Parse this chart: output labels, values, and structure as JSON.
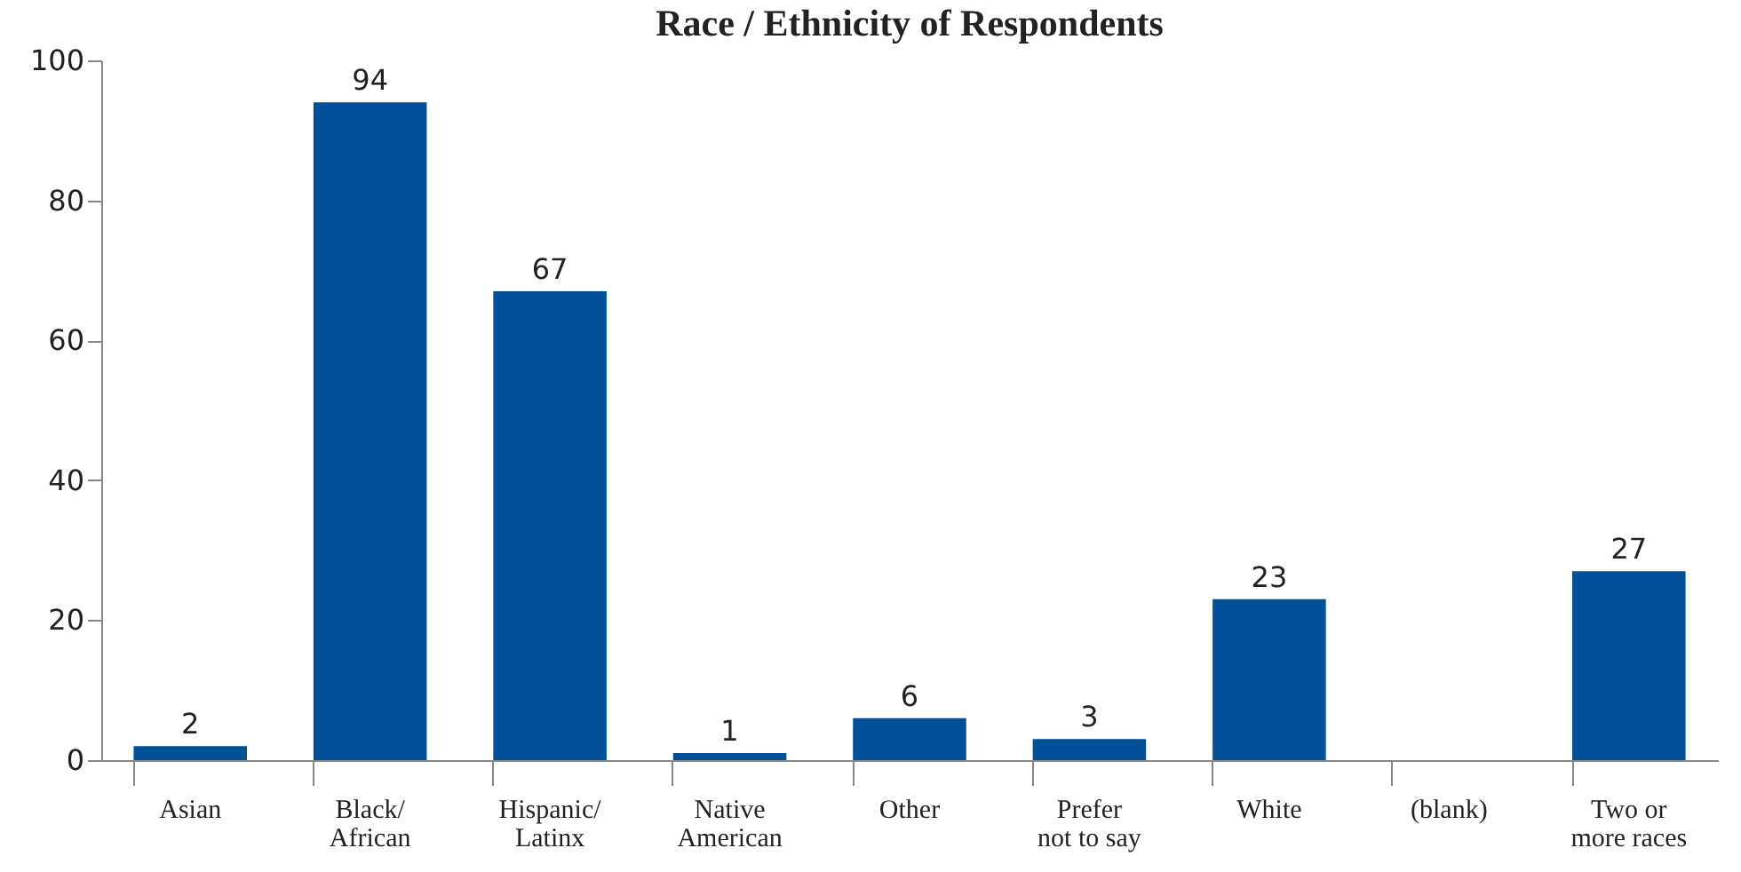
{
  "chart_data": {
    "type": "bar",
    "title": "Race / Ethnicity of Respondents",
    "categories": [
      "Asian",
      "Black/\nAfrican",
      "Hispanic/\nLatinx",
      "Native\nAmerican",
      "Other",
      "Prefer\nnot to say",
      "White",
      "(blank)",
      "Two or\nmore races"
    ],
    "values": [
      2,
      94,
      67,
      1,
      6,
      3,
      23,
      null,
      27
    ],
    "color": "#00509a",
    "ylim": [
      0,
      100
    ],
    "yticks": [
      0,
      20,
      40,
      60,
      80,
      100
    ],
    "data_labels": true,
    "grid": false
  }
}
